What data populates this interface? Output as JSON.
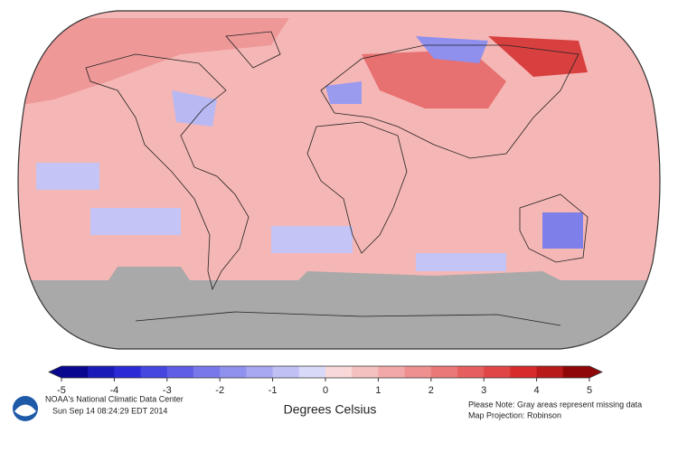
{
  "colorbar": {
    "ticks": [
      -5,
      -4,
      -3,
      -2,
      -1,
      0,
      1,
      2,
      3,
      4,
      5
    ],
    "range": [
      -5,
      5
    ],
    "label": "Degrees Celsius",
    "colors": [
      "#08088f",
      "#1a1ab8",
      "#2b2bd6",
      "#4646e0",
      "#5f5fe6",
      "#7878ea",
      "#9090ee",
      "#a8a8f2",
      "#c0c0f5",
      "#d8d8f8",
      "#f8d8d8",
      "#f5c0c0",
      "#f2a8a8",
      "#ee9090",
      "#ea7878",
      "#e65f5f",
      "#e04646",
      "#d62b2b",
      "#b81a1a",
      "#8f0808"
    ]
  },
  "footer": {
    "source": "NOAA's National Climatic Data Center",
    "timestamp": "Sun Sep 14 08:24:29 EDT 2014",
    "note": "Please Note: Gray areas represent missing data",
    "projection": "Map Projection: Robinson"
  }
}
